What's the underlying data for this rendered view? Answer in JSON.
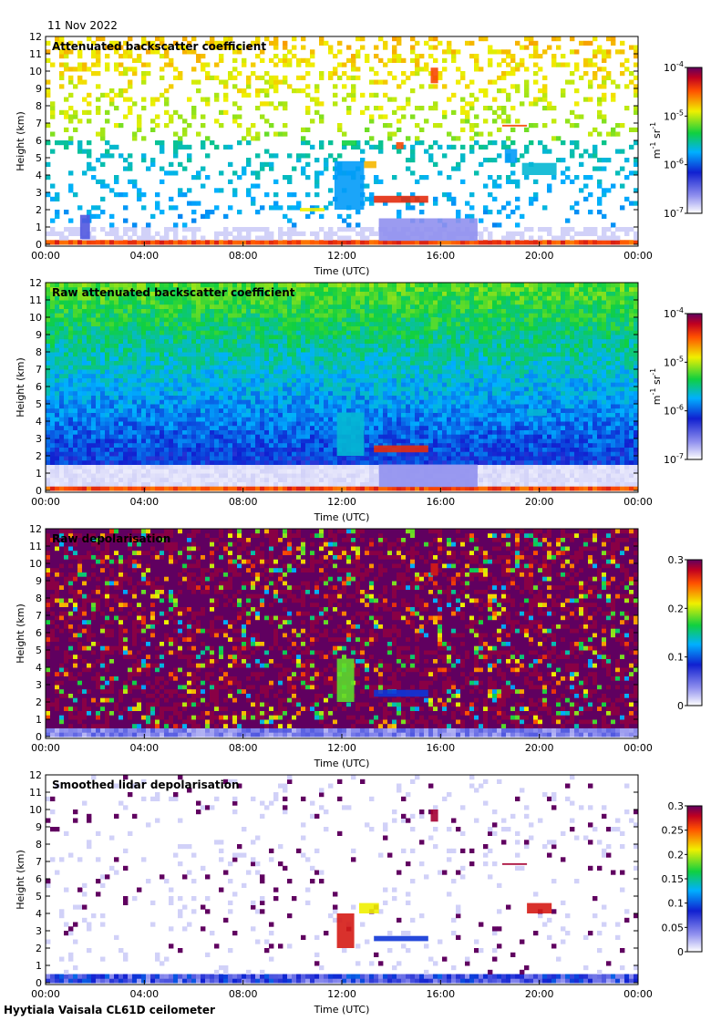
{
  "date": "11 Nov 2022",
  "footer": "Hyytiala Vaisala CL61D ceilometer",
  "chart_data": [
    {
      "type": "heatmap",
      "title": "Attenuated backscatter coefficient",
      "xlabel": "Time (UTC)",
      "ylabel": "Height (km)",
      "xticks": [
        "00:00",
        "04:00",
        "08:00",
        "12:00",
        "16:00",
        "20:00",
        "00:00"
      ],
      "yticks": [
        "0",
        "1",
        "2",
        "3",
        "4",
        "5",
        "6",
        "7",
        "8",
        "9",
        "10",
        "11",
        "12"
      ],
      "ylim": [
        0,
        12
      ],
      "colorbar": {
        "scale": "log",
        "range": [
          1e-07,
          0.0001
        ],
        "ticks": [
          {
            "base": "10",
            "exp": "-7"
          },
          {
            "base": "10",
            "exp": "-6"
          },
          {
            "base": "10",
            "exp": "-5"
          },
          {
            "base": "10",
            "exp": "-4"
          }
        ],
        "units": {
          "base": "m",
          "exp1": "-1",
          "mid": " sr",
          "exp2": "-1"
        }
      },
      "background": "mixed-noise",
      "features": [
        {
          "t_start": 15.6,
          "t_end": 15.9,
          "h_start": 9.3,
          "h_end": 10.2,
          "level": 0.85
        },
        {
          "t_start": 11.7,
          "t_end": 12.9,
          "h_start": 2.0,
          "h_end": 4.8,
          "level": 0.4
        },
        {
          "t_start": 12.9,
          "t_end": 13.4,
          "h_start": 4.4,
          "h_end": 4.8,
          "level": 0.75
        },
        {
          "t_start": 13.3,
          "t_end": 15.5,
          "h_start": 2.4,
          "h_end": 2.8,
          "level": 0.88
        },
        {
          "t_start": 14.2,
          "t_end": 14.5,
          "h_start": 5.5,
          "h_end": 5.9,
          "level": 0.85
        },
        {
          "t_start": 12.0,
          "t_end": 12.6,
          "h_start": 5.7,
          "h_end": 6.0,
          "level": 0.55
        },
        {
          "t_start": 18.5,
          "t_end": 19.5,
          "h_start": 6.8,
          "h_end": 6.9,
          "level": 0.85
        },
        {
          "t_start": 19.3,
          "t_end": 20.7,
          "h_start": 4.0,
          "h_end": 4.7,
          "level": 0.45
        },
        {
          "t_start": 18.6,
          "t_end": 19.1,
          "h_start": 4.7,
          "h_end": 5.5,
          "level": 0.4
        },
        {
          "t_start": 13.5,
          "t_end": 17.5,
          "h_start": 0.2,
          "h_end": 1.5,
          "level": 0.12
        },
        {
          "t_start": 10.3,
          "t_end": 11.3,
          "h_start": 1.9,
          "h_end": 2.1,
          "level": 0.7
        },
        {
          "t_start": 1.4,
          "t_end": 1.8,
          "h_start": 0.3,
          "h_end": 1.7,
          "level": 0.2
        }
      ]
    },
    {
      "type": "heatmap",
      "title": "Raw attenuated backscatter coefficient",
      "xlabel": "Time (UTC)",
      "ylabel": "Height (km)",
      "xticks": [
        "00:00",
        "04:00",
        "08:00",
        "12:00",
        "16:00",
        "20:00",
        "00:00"
      ],
      "yticks": [
        "0",
        "1",
        "2",
        "3",
        "4",
        "5",
        "6",
        "7",
        "8",
        "9",
        "10",
        "11",
        "12"
      ],
      "ylim": [
        0,
        12
      ],
      "colorbar": {
        "scale": "log",
        "range": [
          1e-07,
          0.0001
        ],
        "ticks": [
          {
            "base": "10",
            "exp": "-7"
          },
          {
            "base": "10",
            "exp": "-6"
          },
          {
            "base": "10",
            "exp": "-5"
          },
          {
            "base": "10",
            "exp": "-4"
          }
        ],
        "units": {
          "base": "m",
          "exp1": "-1",
          "mid": " sr",
          "exp2": "-1"
        }
      },
      "background": "raw-noise",
      "features": [
        {
          "t_start": 15.6,
          "t_end": 15.9,
          "h_start": 9.3,
          "h_end": 10.0,
          "level": 0.6
        },
        {
          "t_start": 11.8,
          "t_end": 12.9,
          "h_start": 2.0,
          "h_end": 4.5,
          "level": 0.45
        },
        {
          "t_start": 13.3,
          "t_end": 15.5,
          "h_start": 2.2,
          "h_end": 2.6,
          "level": 0.88
        },
        {
          "t_start": 13.5,
          "t_end": 17.5,
          "h_start": 0.2,
          "h_end": 1.5,
          "level": 0.12
        },
        {
          "t_start": 19.5,
          "t_end": 20.3,
          "h_start": 4.3,
          "h_end": 4.7,
          "level": 0.45
        }
      ]
    },
    {
      "type": "heatmap",
      "title": "Raw depolarisation",
      "xlabel": "Time (UTC)",
      "ylabel": "Height (km)",
      "xticks": [
        "00:00",
        "04:00",
        "08:00",
        "12:00",
        "16:00",
        "20:00",
        "00:00"
      ],
      "yticks": [
        "0",
        "1",
        "2",
        "3",
        "4",
        "5",
        "6",
        "7",
        "8",
        "9",
        "10",
        "11",
        "12"
      ],
      "ylim": [
        0,
        12
      ],
      "colorbar": {
        "scale": "linear",
        "range": [
          0,
          0.3
        ],
        "ticks": [
          {
            "base": "0"
          },
          {
            "base": "0.1"
          },
          {
            "base": "0.2"
          },
          {
            "base": "0.3"
          }
        ]
      },
      "background": "depol-noise",
      "features": [
        {
          "t_start": 11.8,
          "t_end": 12.5,
          "h_start": 2.0,
          "h_end": 4.5,
          "level": 0.6
        },
        {
          "t_start": 13.3,
          "t_end": 15.5,
          "h_start": 2.3,
          "h_end": 2.7,
          "level": 0.3
        },
        {
          "t_start": 15.6,
          "t_end": 15.9,
          "h_start": 9.3,
          "h_end": 10.0,
          "level": 0.9
        }
      ]
    },
    {
      "type": "heatmap",
      "title": "Smoothed lidar depolarisation",
      "xlabel": "Time (UTC)",
      "ylabel": "Height (km)",
      "xticks": [
        "00:00",
        "04:00",
        "08:00",
        "12:00",
        "16:00",
        "20:00",
        "00:00"
      ],
      "yticks": [
        "0",
        "1",
        "2",
        "3",
        "4",
        "5",
        "6",
        "7",
        "8",
        "9",
        "10",
        "11",
        "12"
      ],
      "ylim": [
        0,
        12
      ],
      "colorbar": {
        "scale": "linear",
        "range": [
          0,
          0.3
        ],
        "ticks": [
          {
            "base": "0"
          },
          {
            "base": "0.05"
          },
          {
            "base": "0.1"
          },
          {
            "base": "0.15"
          },
          {
            "base": "0.2"
          },
          {
            "base": "0.25"
          },
          {
            "base": "0.3"
          }
        ]
      },
      "background": "sparse-depol",
      "features": [
        {
          "t_start": 15.6,
          "t_end": 15.9,
          "h_start": 9.3,
          "h_end": 10.0,
          "level": 0.95
        },
        {
          "t_start": 11.8,
          "t_end": 12.5,
          "h_start": 2.0,
          "h_end": 4.0,
          "level": 0.9
        },
        {
          "t_start": 12.7,
          "t_end": 13.5,
          "h_start": 4.0,
          "h_end": 4.6,
          "level": 0.7
        },
        {
          "t_start": 13.3,
          "t_end": 15.5,
          "h_start": 2.4,
          "h_end": 2.7,
          "level": 0.3
        },
        {
          "t_start": 18.5,
          "t_end": 19.5,
          "h_start": 6.8,
          "h_end": 6.9,
          "level": 0.95
        },
        {
          "t_start": 19.5,
          "t_end": 20.5,
          "h_start": 4.0,
          "h_end": 4.6,
          "level": 0.9
        }
      ]
    }
  ]
}
